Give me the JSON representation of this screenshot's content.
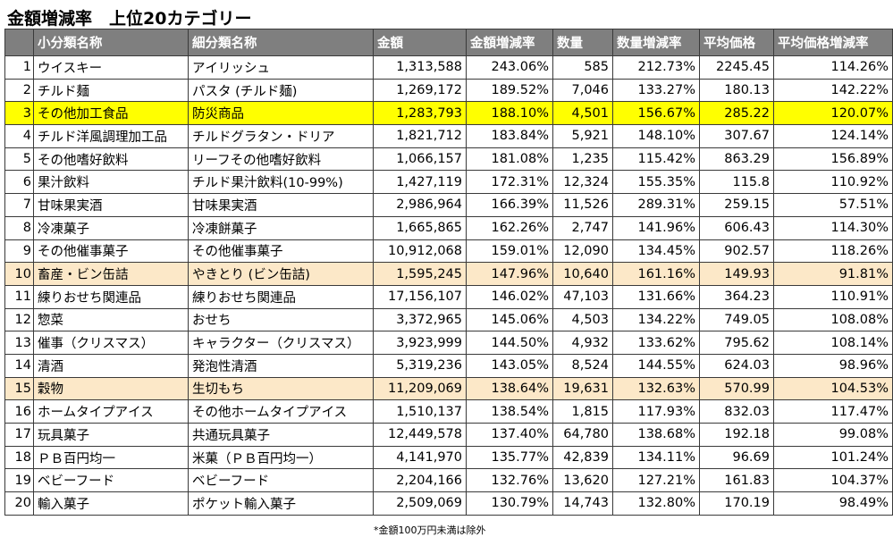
{
  "title": "金額増減率　上位20カテゴリー",
  "columns": [
    "",
    "小分類名称",
    "細分類名称",
    "金額",
    "金額増減率",
    "数量",
    "数量増減率",
    "平均価格",
    "平均価格増減率"
  ],
  "rows": [
    {
      "rank": "1",
      "sub": "ウイスキー",
      "detail": "アイリッシュ",
      "amount": "1,313,588",
      "amount_rate": "243.06%",
      "qty": "585",
      "qty_rate": "212.73%",
      "avg": "2245.45",
      "avg_rate": "114.26%",
      "highlight": ""
    },
    {
      "rank": "2",
      "sub": "チルド麺",
      "detail": "パスタ (チルド麺)",
      "amount": "1,269,172",
      "amount_rate": "189.52%",
      "qty": "7,046",
      "qty_rate": "133.27%",
      "avg": "180.13",
      "avg_rate": "142.22%",
      "highlight": ""
    },
    {
      "rank": "3",
      "sub": "その他加工食品",
      "detail": "防災商品",
      "amount": "1,283,793",
      "amount_rate": "188.10%",
      "qty": "4,501",
      "qty_rate": "156.67%",
      "avg": "285.22",
      "avg_rate": "120.07%",
      "highlight": "yellow"
    },
    {
      "rank": "4",
      "sub": "チルド洋風調理加工品",
      "detail": "チルドグラタン・ドリア",
      "amount": "1,821,712",
      "amount_rate": "183.84%",
      "qty": "5,921",
      "qty_rate": "148.10%",
      "avg": "307.67",
      "avg_rate": "124.14%",
      "highlight": ""
    },
    {
      "rank": "5",
      "sub": "その他嗜好飲料",
      "detail": "リーフその他嗜好飲料",
      "amount": "1,066,157",
      "amount_rate": "181.08%",
      "qty": "1,235",
      "qty_rate": "115.42%",
      "avg": "863.29",
      "avg_rate": "156.89%",
      "highlight": ""
    },
    {
      "rank": "6",
      "sub": "果汁飲料",
      "detail": "チルド果汁飲料(10-99%)",
      "amount": "1,427,119",
      "amount_rate": "172.31%",
      "qty": "12,324",
      "qty_rate": "155.35%",
      "avg": "115.8",
      "avg_rate": "110.92%",
      "highlight": ""
    },
    {
      "rank": "7",
      "sub": "甘味果実酒",
      "detail": "甘味果実酒",
      "amount": "2,986,964",
      "amount_rate": "166.39%",
      "qty": "11,526",
      "qty_rate": "289.31%",
      "avg": "259.15",
      "avg_rate": "57.51%",
      "highlight": ""
    },
    {
      "rank": "8",
      "sub": "冷凍菓子",
      "detail": "冷凍餅菓子",
      "amount": "1,665,865",
      "amount_rate": "162.26%",
      "qty": "2,747",
      "qty_rate": "141.96%",
      "avg": "606.43",
      "avg_rate": "114.30%",
      "highlight": ""
    },
    {
      "rank": "9",
      "sub": "その他催事菓子",
      "detail": "その他催事菓子",
      "amount": "10,912,068",
      "amount_rate": "159.01%",
      "qty": "12,090",
      "qty_rate": "134.45%",
      "avg": "902.57",
      "avg_rate": "118.26%",
      "highlight": ""
    },
    {
      "rank": "10",
      "sub": "畜産・ビン缶詰",
      "detail": "やきとり (ビン缶詰)",
      "amount": "1,595,245",
      "amount_rate": "147.96%",
      "qty": "10,640",
      "qty_rate": "161.16%",
      "avg": "149.93",
      "avg_rate": "91.81%",
      "highlight": "beige"
    },
    {
      "rank": "11",
      "sub": "練りおせち関連品",
      "detail": "練りおせち関連品",
      "amount": "17,156,107",
      "amount_rate": "146.02%",
      "qty": "47,103",
      "qty_rate": "131.66%",
      "avg": "364.23",
      "avg_rate": "110.91%",
      "highlight": ""
    },
    {
      "rank": "12",
      "sub": "惣菜",
      "detail": "おせち",
      "amount": "3,372,965",
      "amount_rate": "145.06%",
      "qty": "4,503",
      "qty_rate": "134.22%",
      "avg": "749.05",
      "avg_rate": "108.08%",
      "highlight": ""
    },
    {
      "rank": "13",
      "sub": "催事（クリスマス）",
      "detail": "キャラクター（クリスマス）",
      "amount": "3,923,999",
      "amount_rate": "144.50%",
      "qty": "4,932",
      "qty_rate": "133.62%",
      "avg": "795.62",
      "avg_rate": "108.14%",
      "highlight": ""
    },
    {
      "rank": "14",
      "sub": "清酒",
      "detail": "発泡性清酒",
      "amount": "5,319,236",
      "amount_rate": "143.05%",
      "qty": "8,524",
      "qty_rate": "144.55%",
      "avg": "624.03",
      "avg_rate": "98.96%",
      "highlight": ""
    },
    {
      "rank": "15",
      "sub": "穀物",
      "detail": "生切もち",
      "amount": "11,209,069",
      "amount_rate": "138.64%",
      "qty": "19,631",
      "qty_rate": "132.63%",
      "avg": "570.99",
      "avg_rate": "104.53%",
      "highlight": "beige"
    },
    {
      "rank": "16",
      "sub": "ホームタイプアイス",
      "detail": "その他ホームタイプアイス",
      "amount": "1,510,137",
      "amount_rate": "138.54%",
      "qty": "1,815",
      "qty_rate": "117.93%",
      "avg": "832.03",
      "avg_rate": "117.47%",
      "highlight": ""
    },
    {
      "rank": "17",
      "sub": "玩具菓子",
      "detail": "共通玩具菓子",
      "amount": "12,449,578",
      "amount_rate": "137.40%",
      "qty": "64,780",
      "qty_rate": "138.68%",
      "avg": "192.18",
      "avg_rate": "99.08%",
      "highlight": ""
    },
    {
      "rank": "18",
      "sub": "ＰＢ百円均一",
      "detail": "米菓（ＰＢ百円均一）",
      "amount": "4,141,970",
      "amount_rate": "135.77%",
      "qty": "42,839",
      "qty_rate": "134.11%",
      "avg": "96.69",
      "avg_rate": "101.24%",
      "highlight": ""
    },
    {
      "rank": "19",
      "sub": "ベビーフード",
      "detail": "ベビーフード",
      "amount": "2,204,166",
      "amount_rate": "132.76%",
      "qty": "13,620",
      "qty_rate": "127.21%",
      "avg": "161.83",
      "avg_rate": "104.37%",
      "highlight": ""
    },
    {
      "rank": "20",
      "sub": "輸入菓子",
      "detail": "ポケット輸入菓子",
      "amount": "2,509,069",
      "amount_rate": "130.79%",
      "qty": "14,743",
      "qty_rate": "132.80%",
      "avg": "170.19",
      "avg_rate": "98.49%",
      "highlight": ""
    }
  ],
  "footnote": "*金額100万円未満は除外"
}
